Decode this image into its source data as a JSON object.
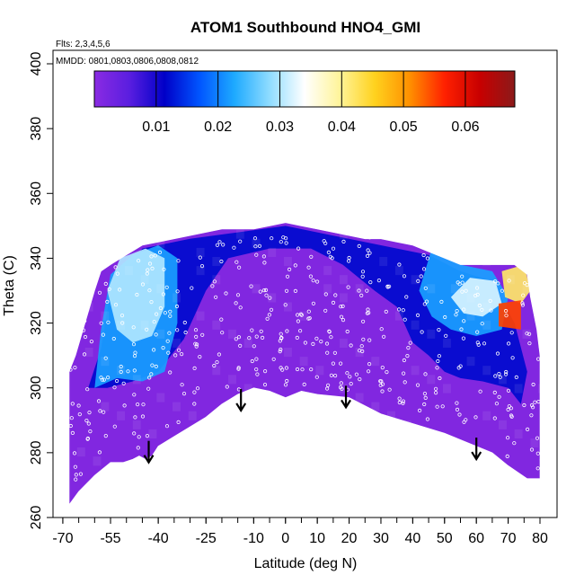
{
  "chart_data": {
    "type": "heatmap",
    "title": "ATOM1 Southbound HNO4_GMI",
    "flights_note": "Flts: 2,3,4,5,6",
    "dates_note": "MMDD: 0801,0803,0806,0808,0812",
    "xlabel": "Latitude (deg N)",
    "ylabel": "Theta (C)",
    "xlim": [
      -70,
      83
    ],
    "ylim": [
      260,
      405
    ],
    "x_ticks": [
      -70,
      -55,
      -40,
      -25,
      -10,
      0,
      10,
      20,
      30,
      40,
      50,
      60,
      70,
      80
    ],
    "y_ticks": [
      260,
      280,
      300,
      320,
      340,
      360,
      380,
      400
    ],
    "colorbar": {
      "min": 0.0,
      "max": 0.068,
      "ticks": [
        0.01,
        0.02,
        0.03,
        0.04,
        0.05,
        0.06
      ],
      "tick_labels": [
        "0.01",
        "0.02",
        "0.03",
        "0.04",
        "0.05",
        "0.06"
      ],
      "colors": [
        "#8a2be2",
        "#5a1ee0",
        "#0000c8",
        "#0055ff",
        "#1eaaff",
        "#8fdcff",
        "#ffffff",
        "#fff49a",
        "#ffd21e",
        "#ff9000",
        "#ff2000",
        "#c80000",
        "#8b1a1a"
      ]
    },
    "boundary": {
      "top": [
        [
          -68,
          305
        ],
        [
          -66,
          310
        ],
        [
          -63,
          320
        ],
        [
          -60,
          330
        ],
        [
          -58,
          336
        ],
        [
          -55,
          338
        ],
        [
          -50,
          341
        ],
        [
          -45,
          344
        ],
        [
          -40,
          345
        ],
        [
          -35,
          346
        ],
        [
          -30,
          347
        ],
        [
          -25,
          348
        ],
        [
          -20,
          349
        ],
        [
          -15,
          349
        ],
        [
          -10,
          349
        ],
        [
          -5,
          350
        ],
        [
          0,
          351
        ],
        [
          5,
          350
        ],
        [
          10,
          349
        ],
        [
          15,
          348
        ],
        [
          20,
          347
        ],
        [
          25,
          346
        ],
        [
          30,
          346
        ],
        [
          35,
          345
        ],
        [
          40,
          344
        ],
        [
          45,
          342
        ],
        [
          50,
          340
        ],
        [
          55,
          338
        ],
        [
          65,
          338
        ],
        [
          72,
          338
        ],
        [
          76,
          335
        ],
        [
          77,
          328
        ],
        [
          79,
          318
        ],
        [
          80,
          310
        ],
        [
          80,
          300
        ]
      ],
      "bottom": [
        [
          80,
          272
        ],
        [
          76,
          272
        ],
        [
          70,
          276
        ],
        [
          65,
          280
        ],
        [
          60,
          282
        ],
        [
          50,
          286
        ],
        [
          40,
          289
        ],
        [
          30,
          292
        ],
        [
          20,
          297
        ],
        [
          10,
          298
        ],
        [
          5,
          299
        ],
        [
          0,
          297
        ],
        [
          -5,
          299
        ],
        [
          -10,
          300
        ],
        [
          -15,
          298
        ],
        [
          -20,
          295
        ],
        [
          -25,
          291
        ],
        [
          -30,
          288
        ],
        [
          -35,
          285
        ],
        [
          -40,
          282
        ],
        [
          -42,
          279
        ],
        [
          -44,
          278
        ],
        [
          -46,
          279
        ],
        [
          -48,
          278
        ],
        [
          -51,
          277
        ],
        [
          -55,
          277
        ],
        [
          -60,
          273
        ],
        [
          -65,
          268
        ],
        [
          -68,
          264
        ]
      ]
    },
    "contour_fields": [
      {
        "name": "blue-band-north",
        "value": 0.012,
        "points": [
          [
            -62,
            300
          ],
          [
            -58,
            312
          ],
          [
            -55,
            330
          ],
          [
            -45,
            343
          ],
          [
            -30,
            346
          ],
          [
            -15,
            348
          ],
          [
            0,
            350
          ],
          [
            15,
            347
          ],
          [
            30,
            344
          ],
          [
            45,
            341
          ],
          [
            55,
            336
          ],
          [
            65,
            333
          ],
          [
            72,
            320
          ],
          [
            76,
            305
          ],
          [
            74,
            295
          ],
          [
            70,
            300
          ],
          [
            62,
            302
          ],
          [
            55,
            303
          ],
          [
            50,
            305
          ],
          [
            45,
            310
          ],
          [
            40,
            314
          ],
          [
            35,
            325
          ],
          [
            28,
            330
          ],
          [
            18,
            338
          ],
          [
            8,
            343
          ],
          [
            -5,
            343
          ],
          [
            -18,
            340
          ],
          [
            -25,
            330
          ],
          [
            -32,
            315
          ],
          [
            -40,
            305
          ],
          [
            -48,
            302
          ],
          [
            -56,
            300
          ]
        ]
      },
      {
        "name": "cyan-band-south",
        "value": 0.022,
        "points": [
          [
            -60,
            300
          ],
          [
            -58,
            318
          ],
          [
            -55,
            335
          ],
          [
            -48,
            341
          ],
          [
            -40,
            344
          ],
          [
            -34,
            340
          ],
          [
            -34,
            320
          ],
          [
            -38,
            305
          ],
          [
            -45,
            302
          ],
          [
            -53,
            303
          ]
        ]
      },
      {
        "name": "cyan-band-north",
        "value": 0.022,
        "points": [
          [
            46,
            343
          ],
          [
            55,
            338
          ],
          [
            65,
            336
          ],
          [
            70,
            328
          ],
          [
            68,
            318
          ],
          [
            60,
            316
          ],
          [
            52,
            318
          ],
          [
            46,
            322
          ],
          [
            42,
            330
          ]
        ]
      },
      {
        "name": "white-core-south",
        "value": 0.03,
        "points": [
          [
            -56,
            330
          ],
          [
            -52,
            340
          ],
          [
            -44,
            343
          ],
          [
            -38,
            340
          ],
          [
            -38,
            325
          ],
          [
            -42,
            316
          ],
          [
            -48,
            314
          ],
          [
            -53,
            318
          ]
        ]
      },
      {
        "name": "white-core-north",
        "value": 0.032,
        "points": [
          [
            52,
            328
          ],
          [
            58,
            334
          ],
          [
            66,
            333
          ],
          [
            68,
            326
          ],
          [
            62,
            322
          ],
          [
            56,
            323
          ]
        ]
      },
      {
        "name": "yellow-patch",
        "value": 0.042,
        "points": [
          [
            68,
            336
          ],
          [
            75,
            338
          ],
          [
            77,
            330
          ],
          [
            74,
            326
          ],
          [
            69,
            328
          ]
        ]
      },
      {
        "name": "red-spot",
        "value": 0.055,
        "points": [
          [
            67,
            326
          ],
          [
            74,
            327
          ],
          [
            74,
            318
          ],
          [
            67,
            319
          ]
        ]
      }
    ],
    "dip_arrows": [
      [
        -43,
        281
      ],
      [
        -14,
        297
      ],
      [
        19,
        298
      ],
      [
        60,
        282
      ]
    ]
  }
}
